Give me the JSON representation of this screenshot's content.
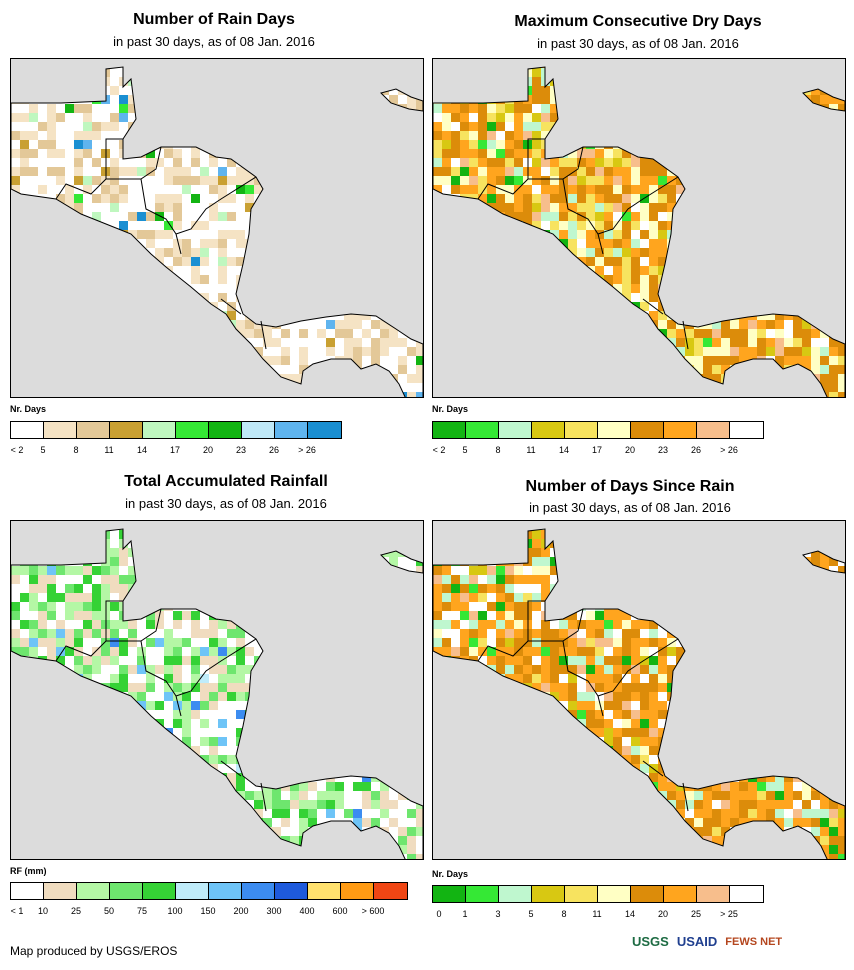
{
  "panels": [
    {
      "title": "Number of Rain Days",
      "subtitle": "in past 30 days, as of 08 Jan. 2016",
      "legend_title": "Nr. Days",
      "legend_labels": [
        "< 2",
        "5",
        "8",
        "11",
        "14",
        "17",
        "20",
        "23",
        "26",
        "> 26"
      ],
      "legend_colors": [
        "#ffffff",
        "#f5e3c4",
        "#e3c898",
        "#c9a032",
        "#bff7bf",
        "#35e835",
        "#12b412",
        "#bfe8f7",
        "#5fb4ee",
        "#1a8fd2"
      ]
    },
    {
      "title": "Maximum Consecutive Dry Days",
      "subtitle": "in past 30 days, as of 08 Jan. 2016",
      "legend_title": "Nr. Days",
      "legend_labels": [
        "< 2",
        "5",
        "8",
        "11",
        "14",
        "17",
        "20",
        "23",
        "26",
        "> 26"
      ],
      "legend_colors": [
        "#12b412",
        "#35e835",
        "#bff7cf",
        "#d8c812",
        "#f7e35f",
        "#ffffc4",
        "#dc8c0a",
        "#ffa51e",
        "#f7be8c",
        "#ffffff"
      ]
    },
    {
      "title": "Total Accumulated Rainfall",
      "subtitle": "in past 30 days, as of 08 Jan. 2016",
      "legend_title": "RF (mm)",
      "legend_labels": [
        "< 1",
        "10",
        "25",
        "50",
        "75",
        "100",
        "150",
        "200",
        "300",
        "400",
        "600",
        "> 600"
      ],
      "legend_colors": [
        "#ffffff",
        "#f0dcbf",
        "#b4f7a5",
        "#6ee66e",
        "#35d235",
        "#bfecfa",
        "#6ec4f7",
        "#3c8cf0",
        "#1e5adc",
        "#ffe16e",
        "#ff9b14",
        "#f04614"
      ]
    },
    {
      "title": "Number of Days Since Rain",
      "subtitle": "in past 30 days, as of 08 Jan. 2016",
      "legend_title": "Nr. Days",
      "legend_labels": [
        "0",
        "1",
        "3",
        "5",
        "8",
        "11",
        "14",
        "20",
        "25",
        "> 25"
      ],
      "legend_colors": [
        "#12b412",
        "#35e835",
        "#bff7cf",
        "#d8c812",
        "#f7e35f",
        "#ffffc4",
        "#dc8c0a",
        "#ffa51e",
        "#f7be8c",
        "#ffffff"
      ]
    }
  ],
  "credit": "Map produced by USGS/EROS",
  "logos": [
    "USGS",
    "USAID",
    "FEWS NET"
  ]
}
